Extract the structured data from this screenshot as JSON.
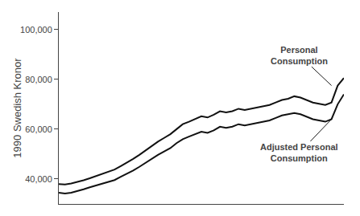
{
  "chart_data": {
    "type": "line",
    "x": [
      1950,
      1951,
      1952,
      1953,
      1954,
      1955,
      1956,
      1957,
      1958,
      1959,
      1960,
      1961,
      1962,
      1963,
      1964,
      1965,
      1966,
      1967,
      1968,
      1969,
      1970,
      1971,
      1972,
      1973,
      1974,
      1975,
      1976,
      1977,
      1978,
      1979,
      1980,
      1981,
      1982,
      1983,
      1984,
      1985,
      1986,
      1987,
      1988,
      1989,
      1990,
      1991,
      1992,
      1993,
      1994,
      1995,
      1996
    ],
    "series": [
      {
        "color": "#111111",
        "values": [
          38000,
          37800,
          38200,
          38800,
          39500,
          40300,
          41200,
          42000,
          42800,
          43800,
          45200,
          46600,
          48100,
          49700,
          51500,
          53300,
          55000,
          56500,
          58000,
          60000,
          62000,
          63000,
          64000,
          65200,
          64700,
          65800,
          67200,
          66700,
          67200,
          68200,
          67700,
          68200,
          68700,
          69200,
          69700,
          70700,
          71700,
          72200,
          73200,
          72700,
          71700,
          70700,
          70200,
          69700,
          70700,
          77500,
          80500
        ]
      },
      {
        "color": "#111111",
        "values": [
          34500,
          34200,
          34500,
          35100,
          35900,
          36700,
          37400,
          38100,
          38700,
          39600,
          40900,
          42100,
          43400,
          44900,
          46600,
          48200,
          49700,
          51100,
          52400,
          54400,
          56000,
          57000,
          58000,
          59000,
          58500,
          59500,
          61000,
          60500,
          61000,
          62000,
          61500,
          62000,
          62500,
          63000,
          63500,
          64500,
          65500,
          66000,
          66500,
          66000,
          65000,
          64000,
          63500,
          63000,
          64000,
          70000,
          74000
        ]
      }
    ],
    "ylabel": "1990 Swedish Kronor",
    "xlim": [
      1950,
      1996
    ],
    "xticks": [],
    "ylim": [
      30000,
      107000
    ],
    "yticks": [
      {
        "value": 40000,
        "label": "40,000"
      },
      {
        "value": 60000,
        "label": "60,000"
      },
      {
        "value": 80000,
        "label": "80,000"
      },
      {
        "value": 100000,
        "label": "100,000"
      }
    ],
    "tick_labels": "y",
    "grid": false,
    "annotations": [
      {
        "text": "Personal\nConsumption",
        "x": 1994,
        "y": 77500
      },
      {
        "text": "Adjusted Personal\nConsumption",
        "x": 1994,
        "y": 64000
      }
    ]
  }
}
